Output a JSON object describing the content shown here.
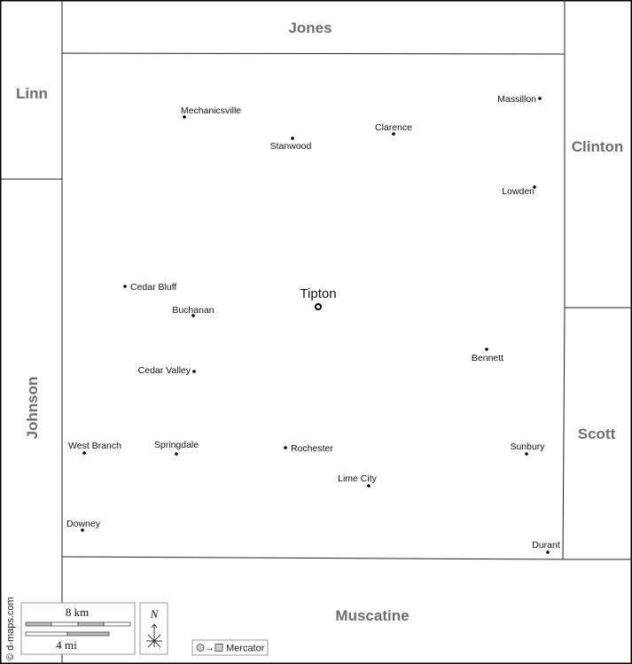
{
  "counties": {
    "jones": "Jones",
    "linn": "Linn",
    "clinton": "Clinton",
    "johnson": "Johnson",
    "scott": "Scott",
    "muscatine": "Muscatine"
  },
  "county_seat": {
    "name": "Tipton",
    "icon": "circle-ring-icon"
  },
  "cities": [
    {
      "name": "Mechanicsville"
    },
    {
      "name": "Stanwood"
    },
    {
      "name": "Clarence"
    },
    {
      "name": "Massillon"
    },
    {
      "name": "Lowden"
    },
    {
      "name": "Cedar Bluff"
    },
    {
      "name": "Buchanan"
    },
    {
      "name": "Bennett"
    },
    {
      "name": "Cedar Valley"
    },
    {
      "name": "West Branch"
    },
    {
      "name": "Springdale"
    },
    {
      "name": "Rochester"
    },
    {
      "name": "Sunbury"
    },
    {
      "name": "Lime City"
    },
    {
      "name": "Downey"
    },
    {
      "name": "Durant"
    }
  ],
  "scale": {
    "km": "8 km",
    "mi": "4 mi"
  },
  "north": "N",
  "projection": "Mercator",
  "credit": "© d-maps.com"
}
